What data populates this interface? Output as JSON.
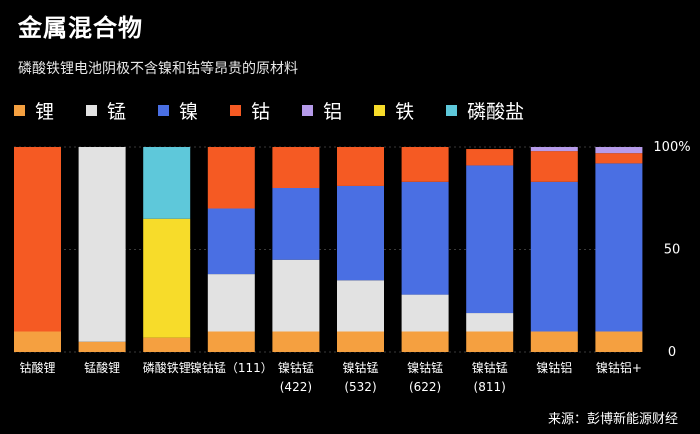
{
  "title": "金属混合物",
  "subtitle": "磷酸铁锂电池阴极不含镍和钴等昂贵的原材料",
  "source": "来源：彭博新能源财经",
  "chart_data": {
    "type": "bar",
    "stacked": true,
    "categories": [
      [
        "钴酸锂"
      ],
      [
        "锰酸锂"
      ],
      [
        "磷酸铁锂"
      ],
      [
        "镍钴锰（111）"
      ],
      [
        "镍钴锰",
        "(422)"
      ],
      [
        "镍钴锰",
        "(532)"
      ],
      [
        "镍钴锰",
        "(622)"
      ],
      [
        "镍钴锰",
        "(811)"
      ],
      [
        "镍钴铝"
      ],
      [
        "镍钴铝+"
      ]
    ],
    "yticks": [
      "0",
      "50",
      "100%"
    ],
    "ylim": [
      0,
      100
    ],
    "series": [
      {
        "name": "锂",
        "color": "#F5A040",
        "values": [
          10,
          5,
          7,
          10,
          10,
          10,
          10,
          10,
          10,
          10
        ]
      },
      {
        "name": "锰",
        "color": "#E2E2E2",
        "values": [
          0,
          95,
          0,
          28,
          35,
          25,
          18,
          9,
          0,
          0
        ]
      },
      {
        "name": "镍",
        "color": "#4A6FE3",
        "values": [
          0,
          0,
          0,
          32,
          35,
          46,
          55,
          72,
          73,
          82
        ]
      },
      {
        "name": "钴",
        "color": "#F55A23",
        "values": [
          90,
          0,
          0,
          30,
          20,
          19,
          17,
          8,
          15,
          5
        ]
      },
      {
        "name": "铝",
        "color": "#B69BEA",
        "values": [
          0,
          0,
          0,
          0,
          0,
          0,
          0,
          0,
          2,
          3
        ]
      },
      {
        "name": "铁",
        "color": "#F7DC2A",
        "values": [
          0,
          0,
          58,
          0,
          0,
          0,
          0,
          0,
          0,
          0
        ]
      },
      {
        "name": "磷酸盐",
        "color": "#5EC8DA",
        "values": [
          0,
          0,
          35,
          0,
          0,
          0,
          0,
          0,
          0,
          0
        ]
      }
    ],
    "grid": true
  }
}
